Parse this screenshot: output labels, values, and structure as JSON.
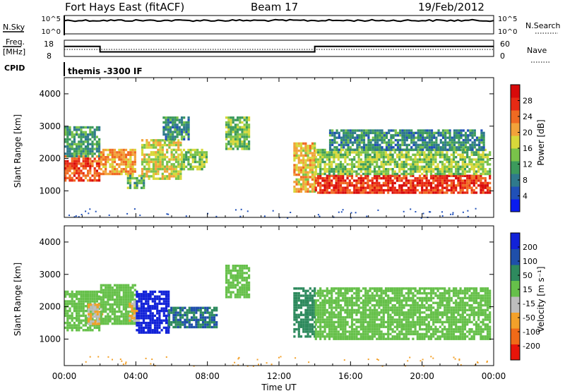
{
  "header": {
    "title": "Fort Hays East (fitACF)",
    "beam": "Beam 17",
    "date": "19/Feb/2012"
  },
  "status_panels": {
    "nsky_label": "N.Sky",
    "nsky_ticks": [
      "10^5",
      "10^0"
    ],
    "nsearch_label": "N.Search",
    "nsearch_ticks": [
      "10^5",
      "10^0"
    ],
    "freq_label_1": "Freq.",
    "freq_label_2": "[MHz]",
    "freq_ticks": [
      "18",
      "8"
    ],
    "nave_label": "Nave",
    "nave_ticks": [
      "60",
      "0"
    ],
    "cpid_label": "CPID",
    "cpid_text": "themis -3300 IF",
    "freq_mhz_steps": [
      {
        "from_h": 0.0,
        "to_h": 2.0,
        "freq": 14.2
      },
      {
        "from_h": 2.0,
        "to_h": 14.0,
        "freq": 10.8
      },
      {
        "from_h": 14.0,
        "to_h": 24.0,
        "freq": 14.2
      }
    ]
  },
  "axes": {
    "xlabel": "Time UT",
    "x_ticks": [
      "00:00",
      "04:00",
      "08:00",
      "12:00",
      "16:00",
      "20:00",
      "00:00"
    ],
    "x_range_hours": [
      0,
      24
    ],
    "ylabel": "Slant Range [km]",
    "y_ticks": [
      "1000",
      "2000",
      "3000",
      "4000"
    ],
    "y_range_km": [
      180,
      4500
    ]
  },
  "colorbars": {
    "power": {
      "label": "Power [dB]",
      "ticks": [
        "4",
        "8",
        "12",
        "16",
        "20",
        "24",
        "28"
      ],
      "colors": [
        "#0a1cf0",
        "#2050b8",
        "#2f7a8c",
        "#3c9a5c",
        "#79c24a",
        "#d7d83a",
        "#f2a23a",
        "#f06a22",
        "#e82a14",
        "#d80a0a"
      ]
    },
    "velocity": {
      "label": "Velocity [m s⁻¹]",
      "ticks": [
        "200",
        "100",
        "50",
        "15",
        "-15",
        "-50",
        "-100",
        "-200"
      ],
      "colors": [
        "#1222d8",
        "#1f4faa",
        "#2e8a5e",
        "#66c04a",
        "#bdbdbd",
        "#f3a12a",
        "#f06a18",
        "#e8140a"
      ]
    }
  },
  "chart_data": [
    {
      "type": "heatmap",
      "title": "Power",
      "xlabel": "Time UT",
      "ylabel": "Slant Range [km]",
      "x_unit": "hours UT",
      "y_unit": "km",
      "value_unit": "dB",
      "value_range": [
        0,
        30
      ],
      "regions": [
        {
          "t0": 0.0,
          "t1": 2.0,
          "r0": 1300,
          "r1": 2100,
          "v": 24
        },
        {
          "t0": 0.0,
          "t1": 2.0,
          "r0": 2100,
          "r1": 3000,
          "v": 10
        },
        {
          "t0": 2.0,
          "t1": 4.0,
          "r0": 1500,
          "r1": 2300,
          "v": 20
        },
        {
          "t0": 3.5,
          "t1": 4.4,
          "r0": 1100,
          "r1": 1500,
          "v": 12
        },
        {
          "t0": 4.3,
          "t1": 6.5,
          "r0": 1400,
          "r1": 2600,
          "v": 16
        },
        {
          "t0": 5.5,
          "t1": 7.0,
          "r0": 2600,
          "r1": 3300,
          "v": 9
        },
        {
          "t0": 6.5,
          "t1": 8.0,
          "r0": 1700,
          "r1": 2300,
          "v": 14
        },
        {
          "t0": 9.0,
          "t1": 10.3,
          "r0": 2300,
          "r1": 3300,
          "v": 13
        },
        {
          "t0": 12.8,
          "t1": 14.0,
          "r0": 1000,
          "r1": 2500,
          "v": 18
        },
        {
          "t0": 14.0,
          "t1": 23.8,
          "r0": 950,
          "r1": 1500,
          "v": 26
        },
        {
          "t0": 14.0,
          "t1": 23.8,
          "r0": 1500,
          "r1": 2300,
          "v": 14
        },
        {
          "t0": 14.8,
          "t1": 23.5,
          "r0": 2300,
          "r1": 2900,
          "v": 9
        }
      ]
    },
    {
      "type": "heatmap",
      "title": "Velocity",
      "xlabel": "Time UT",
      "ylabel": "Slant Range [km]",
      "x_unit": "hours UT",
      "y_unit": "km",
      "value_unit": "m s-1",
      "value_range": [
        -200,
        200
      ],
      "regions": [
        {
          "t0": 0.0,
          "t1": 2.0,
          "r0": 1300,
          "r1": 2500,
          "v": 0
        },
        {
          "t0": 1.3,
          "t1": 2.1,
          "r0": 1500,
          "r1": 2100,
          "v": -50
        },
        {
          "t0": 2.0,
          "t1": 4.0,
          "r0": 1500,
          "r1": 2700,
          "v": 0
        },
        {
          "t0": 3.6,
          "t1": 4.2,
          "r0": 1600,
          "r1": 2200,
          "v": -50
        },
        {
          "t0": 4.0,
          "t1": 5.8,
          "r0": 1200,
          "r1": 2500,
          "v": 200
        },
        {
          "t0": 5.8,
          "t1": 8.5,
          "r0": 1400,
          "r1": 2000,
          "v": 50
        },
        {
          "t0": 9.0,
          "t1": 10.3,
          "r0": 2300,
          "r1": 3300,
          "v": 0
        },
        {
          "t0": 12.8,
          "t1": 14.0,
          "r0": 1100,
          "r1": 2600,
          "v": 30
        },
        {
          "t0": 14.0,
          "t1": 23.8,
          "r0": 1000,
          "r1": 2600,
          "v": 0
        }
      ]
    }
  ]
}
